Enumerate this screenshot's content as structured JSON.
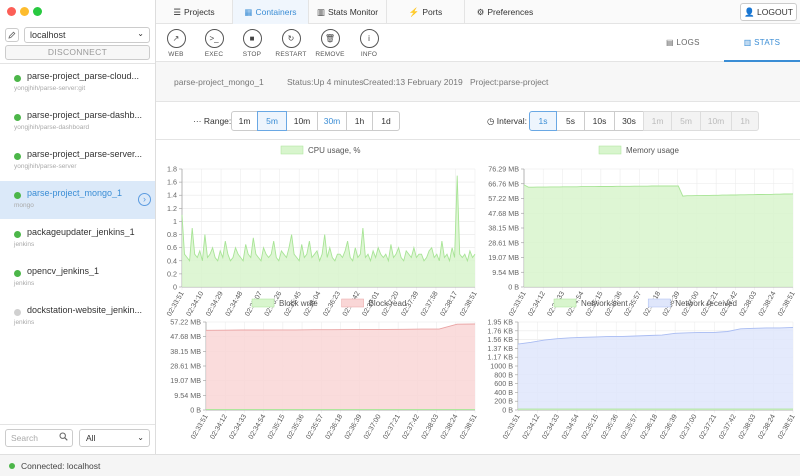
{
  "sidebar": {
    "host": "localhost",
    "disconnect_label": "DISCONNECT",
    "containers": [
      {
        "name": "parse-project_parse-cloud...",
        "image": "yongjhih/parse-server:git",
        "running": true
      },
      {
        "name": "parse-project_parse-dashb...",
        "image": "yongjhih/parse-dashboard",
        "running": true
      },
      {
        "name": "parse-project_parse-server...",
        "image": "yongjhih/parse-server",
        "running": true
      },
      {
        "name": "parse-project_mongo_1",
        "image": "mongo",
        "running": true,
        "active": true
      },
      {
        "name": "packageupdater_jenkins_1",
        "image": "jenkins",
        "running": true
      },
      {
        "name": "opencv_jenkins_1",
        "image": "jenkins",
        "running": true
      },
      {
        "name": "dockstation-website_jenkin...",
        "image": "jenkins",
        "running": false
      }
    ],
    "search_placeholder": "Search",
    "filter_value": "All"
  },
  "status": {
    "text": "Connected: localhost"
  },
  "nav": {
    "tabs": [
      {
        "label": "Projects",
        "icon": "list-icon"
      },
      {
        "label": "Containers",
        "icon": "grid-icon",
        "active": true
      },
      {
        "label": "Stats Monitor",
        "icon": "bar-chart-icon"
      },
      {
        "label": "Ports",
        "icon": "plug-icon"
      },
      {
        "label": "Preferences",
        "icon": "gears-icon"
      }
    ],
    "logout": "LOGOUT"
  },
  "toolbar": {
    "actions": [
      {
        "label": "WEB",
        "glyph": "↗"
      },
      {
        "label": "EXEC",
        "glyph": ">_"
      },
      {
        "label": "STOP",
        "glyph": "■"
      },
      {
        "label": "RESTART",
        "glyph": "↻"
      },
      {
        "label": "REMOVE",
        "glyph": "🗑"
      },
      {
        "label": "INFO",
        "glyph": "i"
      }
    ],
    "logs": "LOGS",
    "stats": "STATS"
  },
  "info": {
    "container": "parse-project_mongo_1",
    "status": "Status:Up 4 minutes",
    "created": "Created:13 February 2019",
    "project": "Project:parse-project"
  },
  "range": {
    "label": "Range:",
    "options": [
      "1m",
      "5m",
      "10m",
      "30m",
      "1h",
      "1d"
    ],
    "selected": "5m",
    "highlighted": "30m"
  },
  "interval": {
    "label": "Interval:",
    "options": [
      "1s",
      "5s",
      "10s",
      "30s",
      "1m",
      "5m",
      "10m",
      "1h"
    ],
    "selected": "1s",
    "disabled": [
      "1m",
      "5m",
      "10m",
      "1h"
    ]
  },
  "colors": {
    "accent": "#3a8dd5",
    "green_fill": "#d8f5cd",
    "green_line": "#a8e496",
    "red_fill": "#f9d6d6",
    "red_line": "#e9a3a3",
    "blue_fill": "#dfe6fb",
    "blue_line": "#a9bcf2"
  },
  "chart_data": [
    {
      "type": "area",
      "legend": [
        "CPU usage, %"
      ],
      "ylim": [
        0,
        1.8
      ],
      "y_ticks": [
        "0",
        "0.2",
        "0.4",
        "0.6",
        "0.8",
        "1",
        "1.2",
        "1.4",
        "1.6",
        "1.8"
      ],
      "x_ticks": [
        "02:33:51",
        "02:34:10",
        "02:34:29",
        "02:34:48",
        "02:35:07",
        "02:35:26",
        "02:35:45",
        "02:36:04",
        "02:36:23",
        "02:36:42",
        "02:37:01",
        "02:37:20",
        "02:37:39",
        "02:37:58",
        "02:38:17",
        "02:38:51"
      ],
      "series": [
        {
          "name": "CPU usage, %",
          "values": [
            1.1,
            0.5,
            0.45,
            0.4,
            0.9,
            0.5,
            0.45,
            0.55,
            0.4,
            0.8,
            0.45,
            0.5,
            0.6,
            0.45,
            0.4,
            0.55,
            0.45,
            0.7,
            0.5,
            0.4,
            0.45,
            0.6,
            0.5,
            0.45,
            0.4,
            0.65,
            0.5,
            0.45,
            0.75,
            0.5,
            0.45,
            0.4,
            0.6,
            0.5,
            0.45,
            0.5,
            0.7,
            0.45,
            0.4,
            0.55,
            0.5,
            0.45,
            0.6,
            0.8,
            0.5,
            0.45,
            0.4,
            0.65,
            0.45,
            0.5,
            0.7,
            0.45,
            0.5,
            0.55,
            0.4,
            0.5,
            0.8,
            0.45,
            0.6,
            0.45,
            0.4,
            0.5,
            0.5,
            0.45,
            0.55,
            0.7,
            0.45,
            0.4,
            0.6,
            0.45,
            0.5,
            0.9,
            0.45,
            0.5,
            0.4,
            0.55,
            0.45,
            0.6,
            0.5,
            0.45,
            0.5,
            0.4,
            0.65,
            0.45,
            0.5,
            0.6,
            0.45,
            0.4,
            0.55,
            0.5,
            0.45,
            0.6,
            0.45,
            0.5,
            0.5,
            0.4,
            0.45,
            0.55,
            0.6,
            0.45,
            0.5,
            0.4,
            0.7,
            0.45,
            0.5,
            0.4,
            0.6,
            0.45,
            1.7,
            0.5,
            0.45,
            0.5,
            0.4,
            0.55,
            0.45,
            0.5
          ]
        }
      ]
    },
    {
      "type": "area",
      "legend": [
        "Memory usage"
      ],
      "ylim": [
        0,
        76.29
      ],
      "y_ticks": [
        "0 B",
        "9.54 MB",
        "19.07 MB",
        "28.61 MB",
        "38.15 MB",
        "47.68 MB",
        "57.22 MB",
        "66.76 MB",
        "76.29 MB"
      ],
      "x_ticks": [
        "02:33:51",
        "02:34:12",
        "02:34:33",
        "02:34:54",
        "02:35:15",
        "02:35:36",
        "02:35:57",
        "02:36:18",
        "02:36:39",
        "02:37:00",
        "02:37:21",
        "02:37:42",
        "02:38:03",
        "02:38:24",
        "02:38:51"
      ],
      "series": [
        {
          "name": "Memory usage",
          "values": [
            66.0,
            64.5,
            64.5,
            64.6,
            64.6,
            64.6,
            64.7,
            64.7,
            64.7,
            64.8,
            64.8,
            64.8,
            64.8,
            64.9,
            64.9,
            64.9,
            64.9,
            65.0,
            65.0,
            65.0,
            65.0,
            65.1,
            65.1,
            65.1,
            65.1,
            65.2,
            65.2,
            65.2,
            65.2,
            65.3,
            65.3,
            65.3,
            65.3,
            65.3,
            65.3,
            65.3,
            58.8,
            59.0,
            59.0,
            59.1,
            59.1,
            59.2,
            59.2,
            59.3,
            59.3,
            59.4,
            59.4,
            59.5,
            59.5,
            59.6,
            59.6,
            59.7,
            59.7,
            59.8,
            59.8,
            59.9,
            59.9,
            60.0,
            60.0,
            60.1,
            60.1,
            60.2
          ]
        }
      ]
    },
    {
      "type": "area",
      "legend": [
        "Block write",
        "Block read"
      ],
      "ylim": [
        0,
        57.22
      ],
      "y_ticks": [
        "0 B",
        "9.54 MB",
        "19.07 MB",
        "28.61 MB",
        "38.15 MB",
        "47.68 MB",
        "57.22 MB"
      ],
      "x_ticks": [
        "02:33:51",
        "02:34:12",
        "02:34:33",
        "02:34:54",
        "02:35:15",
        "02:35:36",
        "02:35:57",
        "02:36:18",
        "02:36:39",
        "02:37:00",
        "02:37:21",
        "02:37:42",
        "02:38:03",
        "02:38:24",
        "02:38:51"
      ],
      "series": [
        {
          "name": "Block write",
          "values": [
            0.4,
            0.4,
            0.4,
            0.4,
            0.4,
            0.4,
            0.4,
            0.4,
            0.4,
            0.4,
            0.4,
            0.4,
            0.4,
            0.4,
            0.4,
            0.4
          ]
        },
        {
          "name": "Block read",
          "values": [
            51.8,
            51.9,
            52.0,
            52.0,
            52.1,
            52.1,
            52.2,
            52.2,
            52.3,
            52.4,
            52.4,
            52.5,
            52.6,
            52.6,
            55.8,
            55.9
          ]
        }
      ]
    },
    {
      "type": "area",
      "legend": [
        "Network sent",
        "Network received"
      ],
      "ylim": [
        0,
        1.95
      ],
      "y_ticks": [
        "0 B",
        "200 B",
        "400 B",
        "600 B",
        "800 B",
        "1000 B",
        "1.17 KB",
        "1.37 KB",
        "1.56 KB",
        "1.76 KB",
        "1.95 KB"
      ],
      "x_ticks": [
        "02:33:51",
        "02:34:12",
        "02:34:33",
        "02:34:54",
        "02:35:15",
        "02:35:36",
        "02:35:57",
        "02:36:18",
        "02:36:39",
        "02:37:00",
        "02:37:21",
        "02:37:42",
        "02:38:03",
        "02:38:24",
        "02:38:51"
      ],
      "series": [
        {
          "name": "Network sent",
          "values": [
            0.02,
            0.02,
            0.02,
            0.02,
            0.02,
            0.02,
            0.02,
            0.02,
            0.02,
            0.02,
            0.02,
            0.02,
            0.02,
            0.02,
            0.02,
            0.02
          ]
        },
        {
          "name": "Network received",
          "values": [
            1.46,
            1.5,
            1.55,
            1.58,
            1.6,
            1.61,
            1.62,
            1.63,
            1.63,
            1.64,
            1.65,
            1.66,
            1.7,
            1.71,
            1.72,
            1.72,
            1.74,
            1.8,
            1.81,
            1.82,
            1.82,
            1.83
          ]
        }
      ]
    }
  ]
}
